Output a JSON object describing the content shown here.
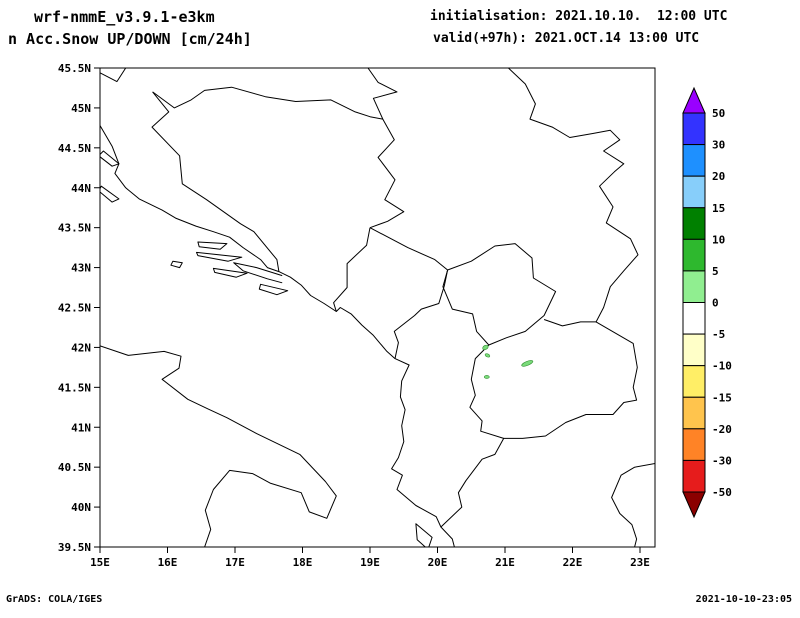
{
  "header": {
    "model": "wrf-nmmE_v3.9.1-e3km",
    "product": "n Acc.Snow UP/DOWN [cm/24h]",
    "initialisation": "initialisation: 2021.10.10.  12:00 UTC",
    "valid": "valid(+97h): 2021.OCT.14 13:00 UTC"
  },
  "footer": {
    "signature": "GrADS: COLA/IGES",
    "timestamp": "2021-10-10-23:05"
  },
  "chart_data": {
    "type": "map",
    "projection": "latlon",
    "units": "cm/24h",
    "lon_range": [
      15,
      23.2
    ],
    "lat_range": [
      39.5,
      45.5
    ],
    "grid": false,
    "x_axis": {
      "ticks": [
        "15E",
        "16E",
        "17E",
        "18E",
        "19E",
        "20E",
        "21E",
        "22E",
        "23E"
      ]
    },
    "y_axis": {
      "ticks": [
        "45.5N",
        "45N",
        "44.5N",
        "44N",
        "43.5N",
        "43N",
        "42.5N",
        "42N",
        "41.5N",
        "41N",
        "40.5N",
        "40N",
        "39.5N"
      ]
    },
    "colorbar": {
      "position": "right",
      "levels": [
        50,
        30,
        20,
        15,
        10,
        5,
        0,
        -5,
        -10,
        -15,
        -20,
        -30,
        -50
      ],
      "colors": [
        "#9900FF",
        "#3333FF",
        "#1E90FF",
        "#87CEFA",
        "#008000",
        "#2EB82E",
        "#90EE90",
        "#FFFFFF",
        "#FFFFC8",
        "#FFEE66",
        "#FFC44D",
        "#FF8326",
        "#E61C1C",
        "#8B0000"
      ]
    },
    "snow_patches": [
      {
        "lon": 20.71,
        "lat": 42.0,
        "w": 6,
        "h": 4,
        "rot": -30,
        "color": "#7ADB7A",
        "value_bin": "0-5"
      },
      {
        "lon": 20.74,
        "lat": 41.9,
        "w": 5,
        "h": 3,
        "rot": 25,
        "color": "#7ADB7A",
        "value_bin": "0-5"
      },
      {
        "lon": 20.73,
        "lat": 41.63,
        "w": 5,
        "h": 3,
        "rot": 0,
        "color": "#7ADB7A",
        "value_bin": "0-5"
      },
      {
        "lon": 21.33,
        "lat": 41.8,
        "w": 12,
        "h": 4,
        "rot": -22,
        "color": "#7ADB7A",
        "value_bin": "0-5"
      }
    ]
  }
}
